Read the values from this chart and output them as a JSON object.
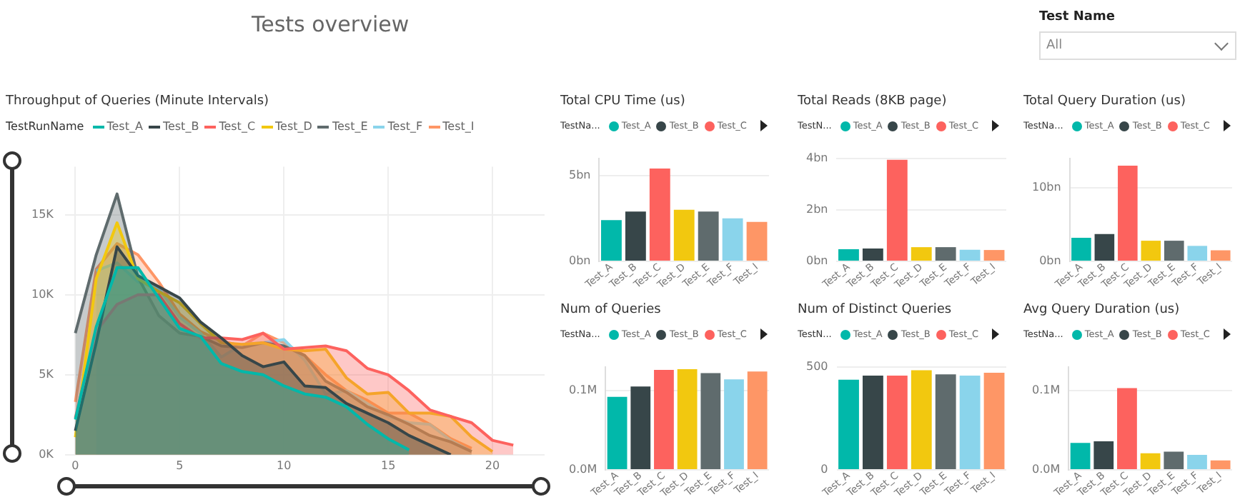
{
  "chart_data": [
    {
      "type": "other",
      "title": "Tests overview",
      "annotations": [
        "Test Name",
        "All"
      ]
    },
    {
      "type": "area",
      "title": "Throughput of Queries (Minute Intervals)",
      "legend_title": "TestRunName",
      "legend": "top left",
      "grid": true,
      "marker": "none",
      "x": [
        0,
        1,
        2,
        3,
        4,
        5,
        6,
        7,
        8,
        9,
        10,
        11,
        12,
        13,
        14,
        15,
        16,
        17,
        18,
        19,
        20,
        21
      ],
      "xlim": [
        -0.5,
        22.5
      ],
      "xticks": [
        0,
        5,
        10,
        15,
        20
      ],
      "ylim": [
        0,
        18000
      ],
      "yticks": [
        {
          "value": 0,
          "label": "0K"
        },
        {
          "value": 5000,
          "label": "5K"
        },
        {
          "value": 10000,
          "label": "10K"
        },
        {
          "value": 15000,
          "label": "15K"
        }
      ],
      "series": [
        {
          "name": "Test_A",
          "color": "#01b8aa",
          "values": [
            2200,
            8000,
            11700,
            11700,
            9800,
            7900,
            7400,
            5700,
            5200,
            5000,
            4300,
            3800,
            3600,
            3000,
            1900,
            1000,
            300,
            null,
            null,
            null,
            null,
            null
          ]
        },
        {
          "name": "Test_B",
          "color": "#374649",
          "values": [
            1500,
            7000,
            13000,
            11200,
            10500,
            9800,
            8300,
            7300,
            6200,
            5500,
            5800,
            4300,
            4200,
            3200,
            2600,
            2000,
            1200,
            600,
            0,
            null,
            null,
            null
          ]
        },
        {
          "name": "Test_C",
          "color": "#fd625e",
          "values": [
            2300,
            7700,
            9400,
            10000,
            10000,
            8200,
            7300,
            7300,
            7200,
            7600,
            6600,
            6700,
            6800,
            6500,
            5400,
            5000,
            4000,
            2800,
            2400,
            2000,
            900,
            600
          ]
        },
        {
          "name": "Test_D",
          "color": "#f2c80f",
          "values": [
            1100,
            11000,
            14500,
            11000,
            10200,
            9500,
            8200,
            7000,
            6900,
            7000,
            6600,
            6500,
            6600,
            4800,
            3800,
            3900,
            2600,
            2600,
            2400,
            1100,
            200,
            null
          ]
        },
        {
          "name": "Test_E",
          "color": "#5f6b6d",
          "values": [
            7600,
            12500,
            16300,
            11100,
            8700,
            7600,
            7400,
            6800,
            6700,
            7000,
            6800,
            6200,
            4600,
            3900,
            3000,
            2500,
            1900,
            1200,
            800,
            200,
            null,
            null
          ]
        },
        {
          "name": "Test_F",
          "color": "#8ad4eb",
          "values": [
            null,
            11500,
            12000,
            10800,
            10400,
            8600,
            7600,
            6100,
            6900,
            7000,
            7200,
            5900,
            3800,
            4000,
            3200,
            2400,
            2000,
            1900,
            900,
            200,
            null,
            null
          ]
        },
        {
          "name": "Test_I",
          "color": "#fe9666",
          "values": [
            3300,
            11600,
            13200,
            12500,
            10800,
            8800,
            7700,
            7100,
            6800,
            7600,
            7000,
            6200,
            5000,
            4000,
            3400,
            2600,
            2600,
            1900,
            1000,
            400,
            null,
            null
          ]
        }
      ]
    },
    {
      "type": "bar",
      "title": "Total CPU Time (us)",
      "legend_title": "TestNa...",
      "legend": "top left",
      "grid": "y",
      "categories": [
        "Test_A",
        "Test_B",
        "Test_C",
        "Test_D",
        "Test_E",
        "Test_F",
        "Test_I"
      ],
      "ylim": [
        0,
        6000000000
      ],
      "yticks": [
        {
          "value": 0,
          "label": "0bn"
        },
        {
          "value": 5000000000,
          "label": "5bn"
        }
      ],
      "series": [
        {
          "name": "Test_A",
          "color": "#01b8aa",
          "values": [
            2400000000,
            null,
            null,
            null,
            null,
            null,
            null
          ]
        },
        {
          "name": "Test_B",
          "color": "#374649",
          "values": [
            null,
            2900000000,
            null,
            null,
            null,
            null,
            null
          ]
        },
        {
          "name": "Test_C",
          "color": "#fd625e",
          "values": [
            null,
            null,
            5400000000,
            null,
            null,
            null,
            null
          ]
        },
        {
          "color": "#f2c80f",
          "values": [
            null,
            null,
            null,
            3000000000,
            null,
            null,
            null
          ]
        },
        {
          "color": "#5f6b6d",
          "values": [
            null,
            null,
            null,
            null,
            2900000000,
            null,
            null
          ]
        },
        {
          "color": "#8ad4eb",
          "values": [
            null,
            null,
            null,
            null,
            null,
            2500000000,
            null
          ]
        },
        {
          "color": "#fe9666",
          "values": [
            null,
            null,
            null,
            null,
            null,
            null,
            2300000000
          ]
        }
      ]
    },
    {
      "type": "bar",
      "title": "Total Reads (8KB page)",
      "legend_title": "TestN...",
      "legend": "top left",
      "grid": "y",
      "categories": [
        "Test_A",
        "Test_B",
        "Test_C",
        "Test_D",
        "Test_E",
        "Test_F",
        "Test_I"
      ],
      "ylim": [
        0,
        4000000000
      ],
      "yticks": [
        {
          "value": 0,
          "label": "0bn"
        },
        {
          "value": 2000000000,
          "label": "2bn"
        },
        {
          "value": 4000000000,
          "label": "4bn"
        }
      ],
      "series": [
        {
          "name": "Test_A",
          "color": "#01b8aa",
          "values": [
            470000000,
            null,
            null,
            null,
            null,
            null,
            null
          ]
        },
        {
          "name": "Test_B",
          "color": "#374649",
          "values": [
            null,
            500000000,
            null,
            null,
            null,
            null,
            null
          ]
        },
        {
          "name": "Test_C",
          "color": "#fd625e",
          "values": [
            null,
            null,
            3940000000,
            null,
            null,
            null,
            null
          ]
        },
        {
          "color": "#f2c80f",
          "values": [
            null,
            null,
            null,
            550000000,
            null,
            null,
            null
          ]
        },
        {
          "color": "#5f6b6d",
          "values": [
            null,
            null,
            null,
            null,
            550000000,
            null,
            null
          ]
        },
        {
          "color": "#8ad4eb",
          "values": [
            null,
            null,
            null,
            null,
            null,
            450000000,
            null
          ]
        },
        {
          "color": "#fe9666",
          "values": [
            null,
            null,
            null,
            null,
            null,
            null,
            440000000
          ]
        }
      ]
    },
    {
      "type": "bar",
      "title": "Total Query Duration (us)",
      "legend_title": "TestNa...",
      "legend": "top left",
      "grid": "y",
      "categories": [
        "Test_A",
        "Test_B",
        "Test_C",
        "Test_D",
        "Test_E",
        "Test_F",
        "Test_I"
      ],
      "ylim": [
        0,
        14000000000
      ],
      "yticks": [
        {
          "value": 0,
          "label": "0bn"
        },
        {
          "value": 10000000000,
          "label": "10bn"
        }
      ],
      "series": [
        {
          "name": "Test_A",
          "color": "#01b8aa",
          "values": [
            3200000000,
            null,
            null,
            null,
            null,
            null,
            null
          ]
        },
        {
          "name": "Test_B",
          "color": "#374649",
          "values": [
            null,
            3700000000,
            null,
            null,
            null,
            null,
            null
          ]
        },
        {
          "name": "Test_C",
          "color": "#fd625e",
          "values": [
            null,
            null,
            13000000000,
            null,
            null,
            null,
            null
          ]
        },
        {
          "color": "#f2c80f",
          "values": [
            null,
            null,
            null,
            2800000000,
            null,
            null,
            null
          ]
        },
        {
          "color": "#5f6b6d",
          "values": [
            null,
            null,
            null,
            null,
            2800000000,
            null,
            null
          ]
        },
        {
          "color": "#8ad4eb",
          "values": [
            null,
            null,
            null,
            null,
            null,
            2100000000,
            null
          ]
        },
        {
          "color": "#fe9666",
          "values": [
            null,
            null,
            null,
            null,
            null,
            null,
            1500000000
          ]
        }
      ]
    },
    {
      "type": "bar",
      "title": "Num of Queries",
      "legend_title": "TestNa...",
      "legend": "top left",
      "grid": "y",
      "categories": [
        "Test_A",
        "Test_B",
        "Test_C",
        "Test_D",
        "Test_E",
        "Test_F",
        "Test_I"
      ],
      "ylim": [
        0,
        130000
      ],
      "yticks": [
        {
          "value": 0,
          "label": "0.0M"
        },
        {
          "value": 100000,
          "label": "0.1M"
        }
      ],
      "series": [
        {
          "name": "Test_A",
          "color": "#01b8aa",
          "values": [
            92000,
            null,
            null,
            null,
            null,
            null,
            null
          ]
        },
        {
          "name": "Test_B",
          "color": "#374649",
          "values": [
            null,
            105000,
            null,
            null,
            null,
            null,
            null
          ]
        },
        {
          "name": "Test_C",
          "color": "#fd625e",
          "values": [
            null,
            null,
            126000,
            null,
            null,
            null,
            null
          ]
        },
        {
          "color": "#f2c80f",
          "values": [
            null,
            null,
            null,
            127000,
            null,
            null,
            null
          ]
        },
        {
          "color": "#5f6b6d",
          "values": [
            null,
            null,
            null,
            null,
            122000,
            null,
            null
          ]
        },
        {
          "color": "#8ad4eb",
          "values": [
            null,
            null,
            null,
            null,
            null,
            114000,
            null
          ]
        },
        {
          "color": "#fe9666",
          "values": [
            null,
            null,
            null,
            null,
            null,
            null,
            124000
          ]
        }
      ]
    },
    {
      "type": "bar",
      "title": "Num of Distinct Queries",
      "legend_title": "TestN...",
      "legend": "top left",
      "grid": "y",
      "categories": [
        "Test_A",
        "Test_B",
        "Test_C",
        "Test_D",
        "Test_E",
        "Test_F",
        "Test_I"
      ],
      "ylim": [
        0,
        500
      ],
      "yticks": [
        0,
        500
      ],
      "series": [
        {
          "name": "Test_A",
          "color": "#01b8aa",
          "values": [
            437,
            null,
            null,
            null,
            null,
            null,
            null
          ]
        },
        {
          "name": "Test_B",
          "color": "#374649",
          "values": [
            null,
            457,
            null,
            null,
            null,
            null,
            null
          ]
        },
        {
          "name": "Test_C",
          "color": "#fd625e",
          "values": [
            null,
            null,
            457,
            null,
            null,
            null,
            null
          ]
        },
        {
          "color": "#f2c80f",
          "values": [
            null,
            null,
            null,
            483,
            null,
            null,
            null
          ]
        },
        {
          "color": "#5f6b6d",
          "values": [
            null,
            null,
            null,
            null,
            463,
            null,
            null
          ]
        },
        {
          "color": "#8ad4eb",
          "values": [
            null,
            null,
            null,
            null,
            null,
            457,
            null
          ]
        },
        {
          "color": "#fe9666",
          "values": [
            null,
            null,
            null,
            null,
            null,
            null,
            471
          ]
        }
      ]
    },
    {
      "type": "bar",
      "title": "Avg Query Duration (us)",
      "legend_title": "TestNa...",
      "legend": "top left",
      "grid": "y",
      "categories": [
        "Test_A",
        "Test_B",
        "Test_C",
        "Test_D",
        "Test_E",
        "Test_F",
        "Test_I"
      ],
      "ylim": [
        0,
        130000
      ],
      "yticks": [
        {
          "value": 0,
          "label": "0.0M"
        },
        {
          "value": 100000,
          "label": "0.1M"
        }
      ],
      "series": [
        {
          "name": "Test_A",
          "color": "#01b8aa",
          "values": [
            34000,
            null,
            null,
            null,
            null,
            null,
            null
          ]
        },
        {
          "name": "Test_B",
          "color": "#374649",
          "values": [
            null,
            36000,
            null,
            null,
            null,
            null,
            null
          ]
        },
        {
          "name": "Test_C",
          "color": "#fd625e",
          "values": [
            null,
            null,
            103000,
            null,
            null,
            null,
            null
          ]
        },
        {
          "color": "#f2c80f",
          "values": [
            null,
            null,
            null,
            21000,
            null,
            null,
            null
          ]
        },
        {
          "color": "#5f6b6d",
          "values": [
            null,
            null,
            null,
            null,
            23000,
            null,
            null
          ]
        },
        {
          "color": "#8ad4eb",
          "values": [
            null,
            null,
            null,
            null,
            null,
            19000,
            null
          ]
        },
        {
          "color": "#fe9666",
          "values": [
            null,
            null,
            null,
            null,
            null,
            null,
            12000
          ]
        }
      ]
    }
  ]
}
